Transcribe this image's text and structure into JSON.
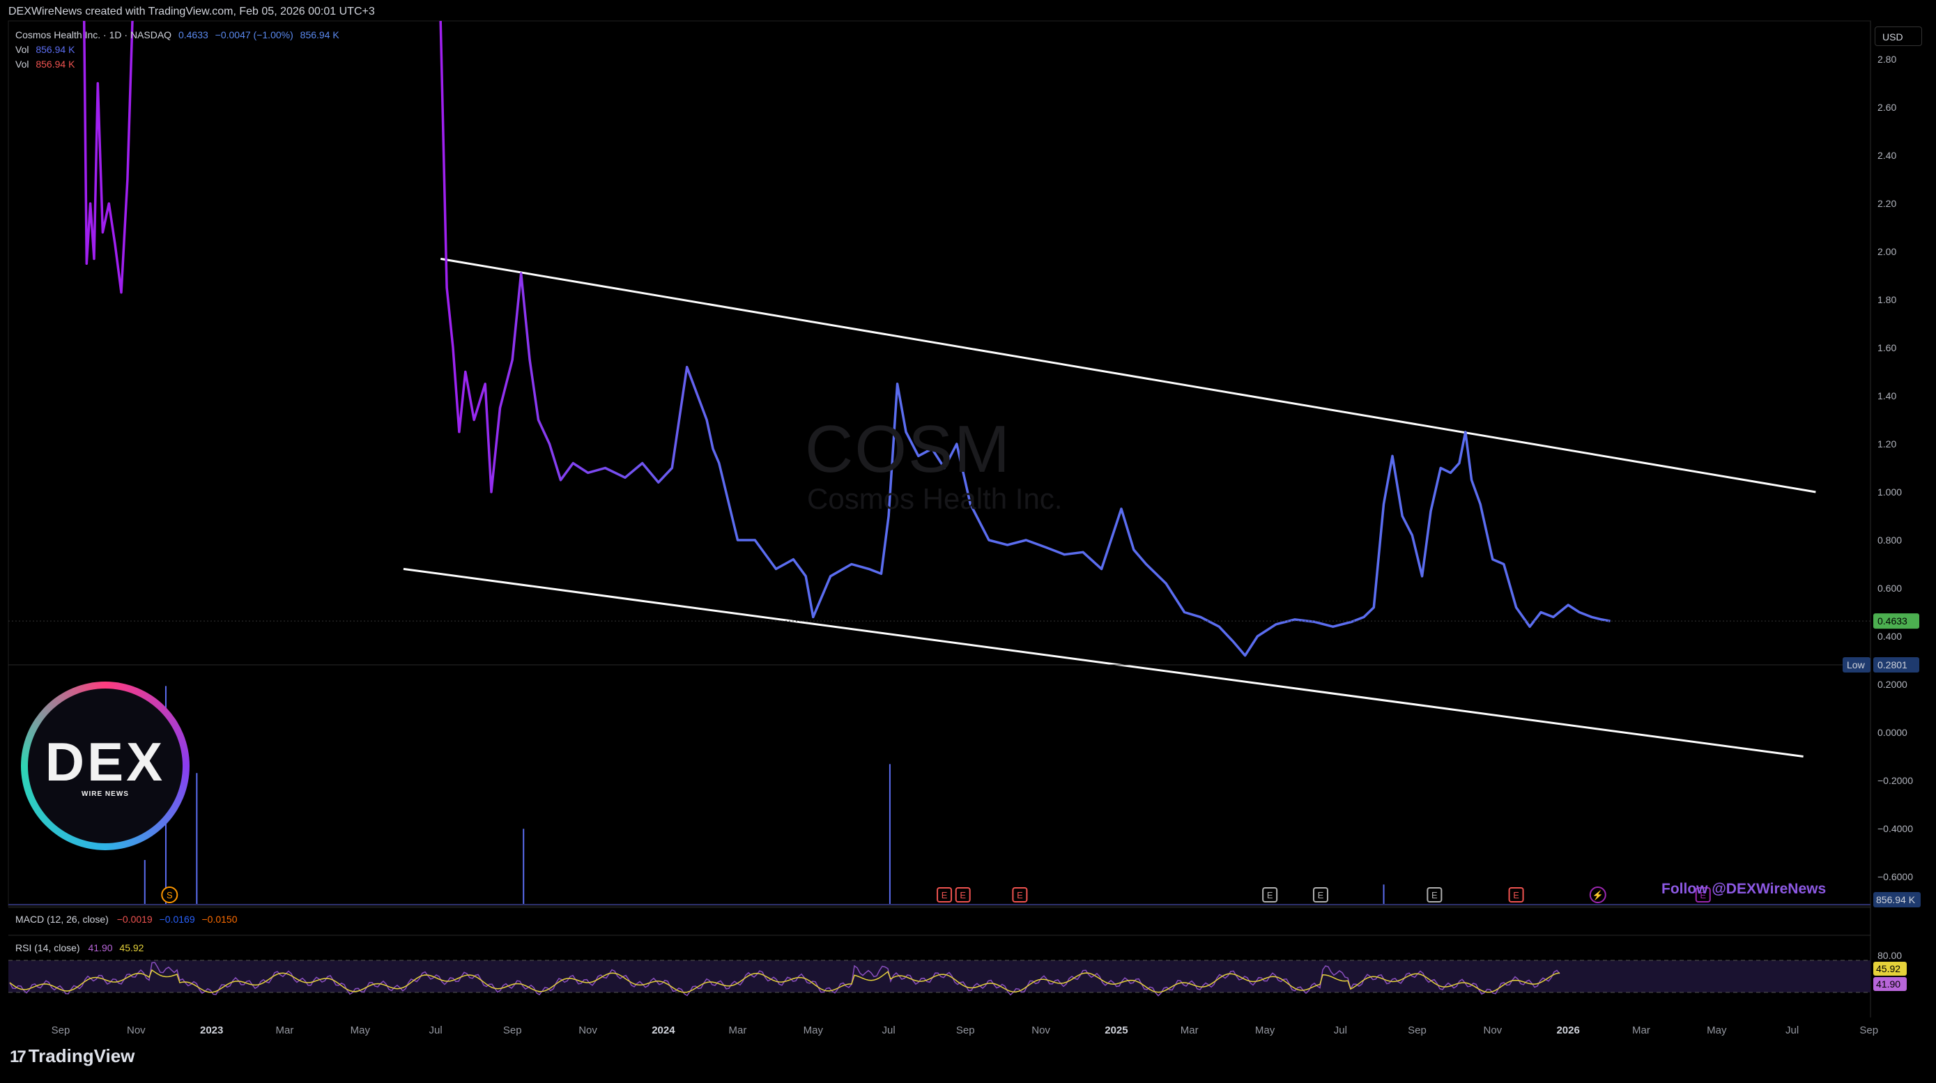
{
  "credit": "DEXWireNews created with TradingView.com, Feb 05, 2026 00:01 UTC+3",
  "legend": {
    "symbol": "Cosmos Health Inc. · 1D · NASDAQ",
    "price": "0.4633",
    "change": "−0.0047 (−1.00%)",
    "vol_inline": "856.94 K",
    "vol1_label": "Vol",
    "vol1_value": "856.94 K",
    "vol2_label": "Vol",
    "vol2_value": "856.94 K"
  },
  "watermark": {
    "ticker": "COSM",
    "name": "Cosmos Health Inc."
  },
  "currency": "USD",
  "macd": {
    "label": "MACD (12, 26, close)",
    "v1": "−0.0019",
    "v2": "−0.0169",
    "v3": "−0.0150"
  },
  "rsi": {
    "label": "RSI (14, close)",
    "v1": "41.90",
    "v2": "45.92"
  },
  "follow": "Follow @DEXWireNews",
  "brand": {
    "name": "TradingView",
    "logo_mark": "17"
  },
  "dex_logo": {
    "big": "DEX",
    "small": "WIRE NEWS"
  },
  "colors": {
    "price_early": "#a020f0",
    "price_late": "#5b6df0",
    "channel": "#ffffff",
    "rsi_line": "#8a4fbf",
    "rsi_ma": "#e6d23a",
    "current_badge": "#4caf50",
    "low_badge": "#1e3a6e",
    "volume_badge": "#1e3a6e"
  },
  "chart_data": {
    "type": "line",
    "title": "",
    "xlabel": "",
    "ylabel": "",
    "ylim": [
      -0.7,
      2.9
    ],
    "y_ticks": [
      "2.80",
      "2.60",
      "2.40",
      "2.20",
      "2.00",
      "1.80",
      "1.60",
      "1.40",
      "1.20",
      "1.000",
      "0.800",
      "0.600",
      "0.400",
      "0.2000",
      "0.0000",
      "−0.2000",
      "−0.4000",
      "−0.6000"
    ],
    "x_ticks": [
      "Sep",
      "Nov",
      "2023",
      "Mar",
      "May",
      "Jul",
      "Sep",
      "Nov",
      "2024",
      "Mar",
      "May",
      "Jul",
      "Sep",
      "Nov",
      "2025",
      "Mar",
      "May",
      "Jul",
      "Sep",
      "Nov",
      "2026",
      "Mar",
      "May",
      "Jul",
      "Sep"
    ],
    "current_price": "0.4633",
    "low_label": "Low",
    "low_value": "0.2801",
    "volume_badge": "856.94 K",
    "rsi_ticks": [
      "80.00"
    ],
    "rsi_badges": [
      "45.92",
      "41.90"
    ],
    "series": [
      {
        "x": [
          "2022-09-20",
          "2022-09-22",
          "2022-09-25",
          "2022-09-28",
          "2022-10-01",
          "2022-10-05",
          "2022-10-10",
          "2022-10-15",
          "2022-10-20",
          "2022-10-25",
          "2022-10-29"
        ],
        "values": [
          3.0,
          1.95,
          2.2,
          1.97,
          2.7,
          2.08,
          2.2,
          2.03,
          1.83,
          2.3,
          3.0
        ]
      },
      {
        "x": [
          "2023-07-05",
          "2023-07-10",
          "2023-07-15",
          "2023-07-20",
          "2023-07-25",
          "2023-08-01",
          "2023-08-10",
          "2023-08-15",
          "2023-08-22",
          "2023-09-01",
          "2023-09-08",
          "2023-09-15",
          "2023-09-22",
          "2023-10-01",
          "2023-10-10",
          "2023-10-20",
          "2023-11-01",
          "2023-11-15",
          "2023-12-01",
          "2023-12-15",
          "2023-12-28",
          "2024-01-08",
          "2024-01-20",
          "2024-02-05",
          "2024-02-10",
          "2024-02-15",
          "2024-03-01",
          "2024-03-15",
          "2024-04-01",
          "2024-04-15",
          "2024-04-25",
          "2024-05-01",
          "2024-05-15",
          "2024-06-01",
          "2024-06-15",
          "2024-06-25",
          "2024-07-01",
          "2024-07-08",
          "2024-07-15",
          "2024-07-25",
          "2024-08-05",
          "2024-08-15",
          "2024-08-25",
          "2024-09-05",
          "2024-09-20",
          "2024-10-05",
          "2024-10-20",
          "2024-11-05",
          "2024-11-20",
          "2024-12-05",
          "2024-12-20",
          "2025-01-05",
          "2025-01-15",
          "2025-01-25",
          "2025-02-10",
          "2025-02-25",
          "2025-03-10",
          "2025-03-25",
          "2025-04-05",
          "2025-04-15",
          "2025-04-25",
          "2025-05-10",
          "2025-05-25",
          "2025-06-10",
          "2025-06-25",
          "2025-07-10",
          "2025-07-20",
          "2025-07-28",
          "2025-08-05",
          "2025-08-12",
          "2025-08-20",
          "2025-08-28",
          "2025-09-05",
          "2025-09-12",
          "2025-09-20",
          "2025-09-28",
          "2025-10-05",
          "2025-10-10",
          "2025-10-15",
          "2025-10-22",
          "2025-11-01",
          "2025-11-10",
          "2025-11-20",
          "2025-12-01",
          "2025-12-10",
          "2025-12-20",
          "2026-01-01",
          "2026-01-10",
          "2026-01-20",
          "2026-01-28",
          "2026-02-04"
        ],
        "values": [
          2.96,
          1.85,
          1.6,
          1.25,
          1.5,
          1.3,
          1.45,
          1.0,
          1.35,
          1.55,
          1.91,
          1.55,
          1.3,
          1.2,
          1.05,
          1.12,
          1.08,
          1.1,
          1.06,
          1.12,
          1.04,
          1.1,
          1.52,
          1.3,
          1.18,
          1.12,
          0.8,
          0.8,
          0.68,
          0.72,
          0.65,
          0.48,
          0.65,
          0.7,
          0.68,
          0.66,
          0.9,
          1.45,
          1.25,
          1.15,
          1.18,
          1.1,
          1.2,
          0.95,
          0.8,
          0.78,
          0.8,
          0.77,
          0.74,
          0.75,
          0.68,
          0.93,
          0.76,
          0.7,
          0.62,
          0.5,
          0.48,
          0.44,
          0.38,
          0.32,
          0.4,
          0.45,
          0.47,
          0.46,
          0.44,
          0.46,
          0.48,
          0.52,
          0.95,
          1.15,
          0.9,
          0.82,
          0.65,
          0.92,
          1.1,
          1.08,
          1.12,
          1.25,
          1.05,
          0.95,
          0.72,
          0.7,
          0.52,
          0.44,
          0.5,
          0.48,
          0.53,
          0.5,
          0.48,
          0.47,
          0.4633
        ]
      }
    ],
    "channel": [
      {
        "name": "upper",
        "x": [
          "2023-07-05",
          "2026-07-20"
        ],
        "values": [
          1.97,
          1.0
        ]
      },
      {
        "name": "lower",
        "x": [
          "2023-06-05",
          "2026-07-10"
        ],
        "values": [
          0.68,
          -0.1
        ]
      }
    ],
    "volume_spikes": [
      {
        "x": "2022-11-25",
        "rel": 0.98
      },
      {
        "x": "2022-11-08",
        "rel": 0.2
      },
      {
        "x": "2022-12-20",
        "rel": 0.59
      },
      {
        "x": "2023-09-10",
        "rel": 0.34
      },
      {
        "x": "2024-07-02",
        "rel": 0.63
      },
      {
        "x": "2025-08-05",
        "rel": 0.09
      }
    ],
    "events": [
      {
        "x": "2022-11-28",
        "kind": "S",
        "color": "#ff9800"
      },
      {
        "x": "2024-08-15",
        "kind": "E",
        "color": "#ef5350"
      },
      {
        "x": "2024-08-30",
        "kind": "E",
        "color": "#ef5350"
      },
      {
        "x": "2024-10-15",
        "kind": "E",
        "color": "#ef5350"
      },
      {
        "x": "2025-05-05",
        "kind": "E",
        "color": "#b0b0b0"
      },
      {
        "x": "2025-06-15",
        "kind": "E",
        "color": "#b0b0b0"
      },
      {
        "x": "2025-09-15",
        "kind": "E",
        "color": "#b0b0b0"
      },
      {
        "x": "2025-11-20",
        "kind": "E",
        "color": "#ef5350"
      },
      {
        "x": "2026-01-25",
        "kind": "⚡",
        "color": "#9c27b0"
      },
      {
        "x": "2026-04-20",
        "kind": "E",
        "color": "#9c27b0"
      }
    ]
  }
}
